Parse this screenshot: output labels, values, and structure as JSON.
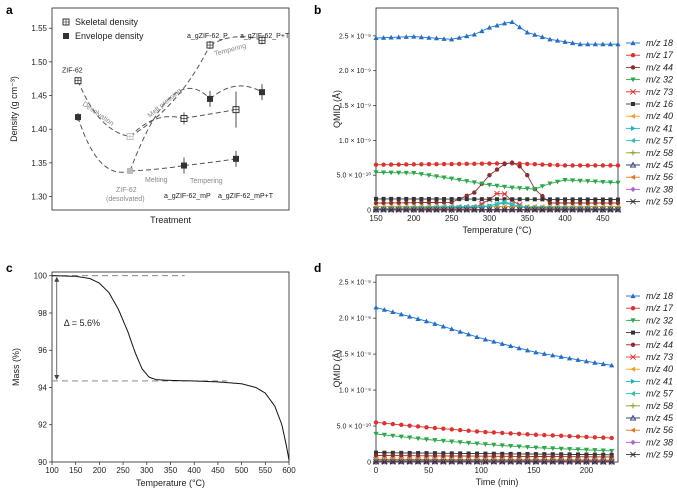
{
  "chart_data": [
    {
      "panel": "a",
      "type": "scatter",
      "ylabel": "Density (g cm⁻³)",
      "xlabel": "Treatment",
      "ylim": [
        1.28,
        1.58
      ],
      "yticks": [
        "1.30",
        "1.35",
        "1.40",
        "1.45",
        "1.50",
        "1.55"
      ],
      "legend": {
        "skeletal": "Skeletal density",
        "envelope": "Envelope density",
        "placement": "top-left"
      },
      "skeletal": [
        {
          "label": "ZIF-62",
          "y": 1.472
        },
        {
          "label": "",
          "y": 1.389
        },
        {
          "label": "",
          "y": 1.416
        },
        {
          "label": "",
          "y": 1.429
        },
        {
          "label": "a_gZIF-62_P",
          "y": 1.525
        },
        {
          "label": "a_gZIF-62_P+T",
          "y": 1.532
        }
      ],
      "envelope": [
        {
          "y": 1.418
        },
        {
          "y": 1.338
        },
        {
          "y": 1.346
        },
        {
          "y": 1.356
        },
        {
          "y": 1.445
        },
        {
          "y": 1.455
        }
      ],
      "annotations": {
        "zif62": "ZIF-62",
        "desolvated": "ZIF-62",
        "desolvated2": "(desolvated)",
        "desolvation": "Desolvation",
        "melt_pressing": "Melt pressing",
        "tempering_top": "Tempering",
        "melting": "Melting",
        "tempering_bottom": "Tempering",
        "agp": "a_gZIF-62_P",
        "agpt": "a_gZIF-62_P+T",
        "agmp": "a_gZIF-62_mP",
        "agmpt": "a_gZIF-62_mP+T"
      }
    },
    {
      "panel": "b",
      "type": "line",
      "ylabel": "QMID (Å)",
      "xlabel": "Temperature (°C)",
      "xlim": [
        150,
        470
      ],
      "ylim": [
        0,
        2.9e-09
      ],
      "xticks": [
        "150",
        "200",
        "250",
        "300",
        "350",
        "400",
        "450"
      ],
      "yticks": [
        "0",
        "5.0 × 10⁻¹⁰",
        "1.0 × 10⁻⁹",
        "1.5 × 10⁻⁹",
        "2.0 × 10⁻⁹",
        "2.5 × 10⁻⁹"
      ],
      "series": [
        {
          "name": "m/z 18",
          "color": "#1f6fc9",
          "marker": "triangle-up",
          "points": [
            [
              150,
              2.47e-09
            ],
            [
              200,
              2.49e-09
            ],
            [
              250,
              2.45e-09
            ],
            [
              280,
              2.52e-09
            ],
            [
              300,
              2.62e-09
            ],
            [
              320,
              2.68e-09
            ],
            [
              330,
              2.7e-09
            ],
            [
              350,
              2.55e-09
            ],
            [
              380,
              2.45e-09
            ],
            [
              420,
              2.38e-09
            ],
            [
              470,
              2.38e-09
            ]
          ]
        },
        {
          "name": "m/z 17",
          "color": "#e03030",
          "marker": "circle",
          "points": [
            [
              150,
              6.5e-10
            ],
            [
              250,
              6.6e-10
            ],
            [
              330,
              6.7e-10
            ],
            [
              400,
              6.4e-10
            ],
            [
              470,
              6.4e-10
            ]
          ]
        },
        {
          "name": "m/z 44",
          "color": "#8b2e2e",
          "marker": "circle",
          "points": [
            [
              150,
              1e-10
            ],
            [
              250,
              1.1e-10
            ],
            [
              280,
              2.5e-10
            ],
            [
              300,
              5e-10
            ],
            [
              320,
              6.6e-10
            ],
            [
              330,
              6.8e-10
            ],
            [
              345,
              6e-10
            ],
            [
              360,
              3e-10
            ],
            [
              380,
              1e-10
            ],
            [
              470,
              1e-10
            ]
          ]
        },
        {
          "name": "m/z 32",
          "color": "#2aa84a",
          "marker": "triangle-down",
          "points": [
            [
              150,
              5.4e-10
            ],
            [
              200,
              5.3e-10
            ],
            [
              250,
              4.5e-10
            ],
            [
              300,
              3.6e-10
            ],
            [
              330,
              3.2e-10
            ],
            [
              360,
              3e-10
            ],
            [
              380,
              3.8e-10
            ],
            [
              400,
              4.3e-10
            ],
            [
              470,
              3.9e-10
            ]
          ]
        },
        {
          "name": "m/z 73",
          "color": "#e03030",
          "marker": "star",
          "points": [
            [
              150,
              1e-11
            ],
            [
              280,
              3e-11
            ],
            [
              300,
              1.5e-10
            ],
            [
              315,
              2.8e-10
            ],
            [
              330,
              1.3e-10
            ],
            [
              350,
              2e-11
            ],
            [
              470,
              1e-11
            ]
          ]
        },
        {
          "name": "m/z 16",
          "color": "#333333",
          "marker": "square",
          "points": [
            [
              150,
              1.6e-10
            ],
            [
              470,
              1.5e-10
            ]
          ]
        },
        {
          "name": "m/z 40",
          "color": "#f0a020",
          "marker": "triangle-left",
          "points": [
            [
              150,
              5e-11
            ],
            [
              470,
              5e-11
            ]
          ]
        },
        {
          "name": "m/z 41",
          "color": "#20b0c8",
          "marker": "triangle-right",
          "points": [
            [
              150,
              2e-11
            ],
            [
              290,
              4e-11
            ],
            [
              320,
              1e-10
            ],
            [
              345,
              4e-11
            ],
            [
              470,
              2e-11
            ]
          ]
        },
        {
          "name": "m/z 57",
          "color": "#30c0b0",
          "marker": "triangle-left",
          "points": [
            [
              150,
              2e-11
            ],
            [
              300,
              6e-11
            ],
            [
              320,
              1.2e-10
            ],
            [
              345,
              3e-11
            ],
            [
              470,
              2e-11
            ]
          ]
        },
        {
          "name": "m/z 58",
          "color": "#8a9a20",
          "marker": "plus",
          "points": [
            [
              150,
              1e-11
            ],
            [
              470,
              1e-11
            ]
          ]
        },
        {
          "name": "m/z 45",
          "color": "#203070",
          "marker": "triangle-up-open",
          "points": [
            [
              150,
              5e-12
            ],
            [
              470,
              5e-12
            ]
          ]
        },
        {
          "name": "m/z 56",
          "color": "#e07a20",
          "marker": "triangle-left",
          "points": [
            [
              150,
              5e-12
            ],
            [
              470,
              5e-12
            ]
          ]
        },
        {
          "name": "m/z 38",
          "color": "#b060d0",
          "marker": "diamond",
          "points": [
            [
              150,
              3e-12
            ],
            [
              470,
              3e-12
            ]
          ]
        },
        {
          "name": "m/z 59",
          "color": "#333333",
          "marker": "star",
          "points": [
            [
              150,
              2e-12
            ],
            [
              470,
              2e-12
            ]
          ]
        }
      ]
    },
    {
      "panel": "c",
      "type": "line",
      "ylabel": "Mass (%)",
      "xlabel": "Temperature (°C)",
      "xlim": [
        100,
        600
      ],
      "ylim": [
        90,
        100.2
      ],
      "xticks": [
        "100",
        "150",
        "200",
        "250",
        "300",
        "350",
        "400",
        "450",
        "500",
        "550",
        "600"
      ],
      "yticks": [
        "90",
        "92",
        "94",
        "96",
        "98",
        "100"
      ],
      "annotation": "Δ = 5.6%",
      "points": [
        [
          100,
          100.0
        ],
        [
          150,
          99.97
        ],
        [
          180,
          99.85
        ],
        [
          200,
          99.6
        ],
        [
          220,
          99.1
        ],
        [
          240,
          98.2
        ],
        [
          260,
          97.0
        ],
        [
          275,
          95.9
        ],
        [
          290,
          95.0
        ],
        [
          305,
          94.55
        ],
        [
          320,
          94.42
        ],
        [
          350,
          94.38
        ],
        [
          400,
          94.35
        ],
        [
          450,
          94.3
        ],
        [
          500,
          94.2
        ],
        [
          530,
          94.0
        ],
        [
          550,
          93.7
        ],
        [
          570,
          93.0
        ],
        [
          585,
          92.0
        ],
        [
          595,
          90.8
        ],
        [
          600,
          90.1
        ]
      ]
    },
    {
      "panel": "d",
      "type": "line",
      "ylabel": "QMID (Å)",
      "xlabel": "Time (min)",
      "xlim": [
        0,
        230
      ],
      "ylim": [
        0,
        2.6e-09
      ],
      "xticks": [
        "0",
        "50",
        "100",
        "150",
        "200"
      ],
      "yticks": [
        "0",
        "5.0 × 10⁻¹⁰",
        "1.0 × 10⁻⁹",
        "1.5 × 10⁻⁹",
        "2.0 × 10⁻⁹",
        "2.5 × 10⁻⁹"
      ],
      "series": [
        {
          "name": "m/z 18",
          "color": "#1f6fc9",
          "marker": "triangle-up",
          "points": [
            [
              0,
              2.15e-09
            ],
            [
              50,
              1.95e-09
            ],
            [
              100,
              1.72e-09
            ],
            [
              150,
              1.53e-09
            ],
            [
              200,
              1.4e-09
            ],
            [
              230,
              1.33e-09
            ]
          ]
        },
        {
          "name": "m/z 17",
          "color": "#e03030",
          "marker": "circle",
          "points": [
            [
              0,
              5.5e-10
            ],
            [
              50,
              4.8e-10
            ],
            [
              100,
              4.2e-10
            ],
            [
              150,
              3.8e-10
            ],
            [
              230,
              3.3e-10
            ]
          ]
        },
        {
          "name": "m/z 32",
          "color": "#2aa84a",
          "marker": "triangle-down",
          "points": [
            [
              0,
              3.9e-10
            ],
            [
              50,
              3.1e-10
            ],
            [
              100,
              2.5e-10
            ],
            [
              150,
              2e-10
            ],
            [
              230,
              1.5e-10
            ]
          ]
        },
        {
          "name": "m/z 16",
          "color": "#333333",
          "marker": "square",
          "points": [
            [
              0,
              1.3e-10
            ],
            [
              230,
              1e-10
            ]
          ]
        },
        {
          "name": "m/z 44",
          "color": "#8b2e2e",
          "marker": "circle",
          "points": [
            [
              0,
              9e-11
            ],
            [
              230,
              7e-11
            ]
          ]
        },
        {
          "name": "m/z 73",
          "color": "#e03030",
          "marker": "star",
          "points": [
            [
              0,
              3e-11
            ],
            [
              230,
              2e-11
            ]
          ]
        },
        {
          "name": "m/z 40",
          "color": "#f0a020",
          "marker": "triangle-left",
          "points": [
            [
              0,
              4e-11
            ],
            [
              230,
              3e-11
            ]
          ]
        },
        {
          "name": "m/z 41",
          "color": "#20b0c8",
          "marker": "triangle-right",
          "points": [
            [
              0,
              1.5e-11
            ],
            [
              230,
              1e-11
            ]
          ]
        },
        {
          "name": "m/z 57",
          "color": "#30c0b0",
          "marker": "triangle-left",
          "points": [
            [
              0,
              1.2e-11
            ],
            [
              230,
              8e-12
            ]
          ]
        },
        {
          "name": "m/z 58",
          "color": "#8a9a20",
          "marker": "plus",
          "points": [
            [
              0,
              8e-12
            ],
            [
              230,
              5e-12
            ]
          ]
        },
        {
          "name": "m/z 45",
          "color": "#203070",
          "marker": "triangle-up-open",
          "points": [
            [
              0,
              5e-12
            ],
            [
              230,
              4e-12
            ]
          ]
        },
        {
          "name": "m/z 56",
          "color": "#e07a20",
          "marker": "triangle-left",
          "points": [
            [
              0,
              4e-12
            ],
            [
              230,
              3e-12
            ]
          ]
        },
        {
          "name": "m/z 38",
          "color": "#b060d0",
          "marker": "diamond",
          "points": [
            [
              0,
              3e-12
            ],
            [
              230,
              2e-12
            ]
          ]
        },
        {
          "name": "m/z 59",
          "color": "#333333",
          "marker": "star",
          "points": [
            [
              0,
              2e-12
            ],
            [
              230,
              1e-12
            ]
          ]
        }
      ]
    }
  ]
}
